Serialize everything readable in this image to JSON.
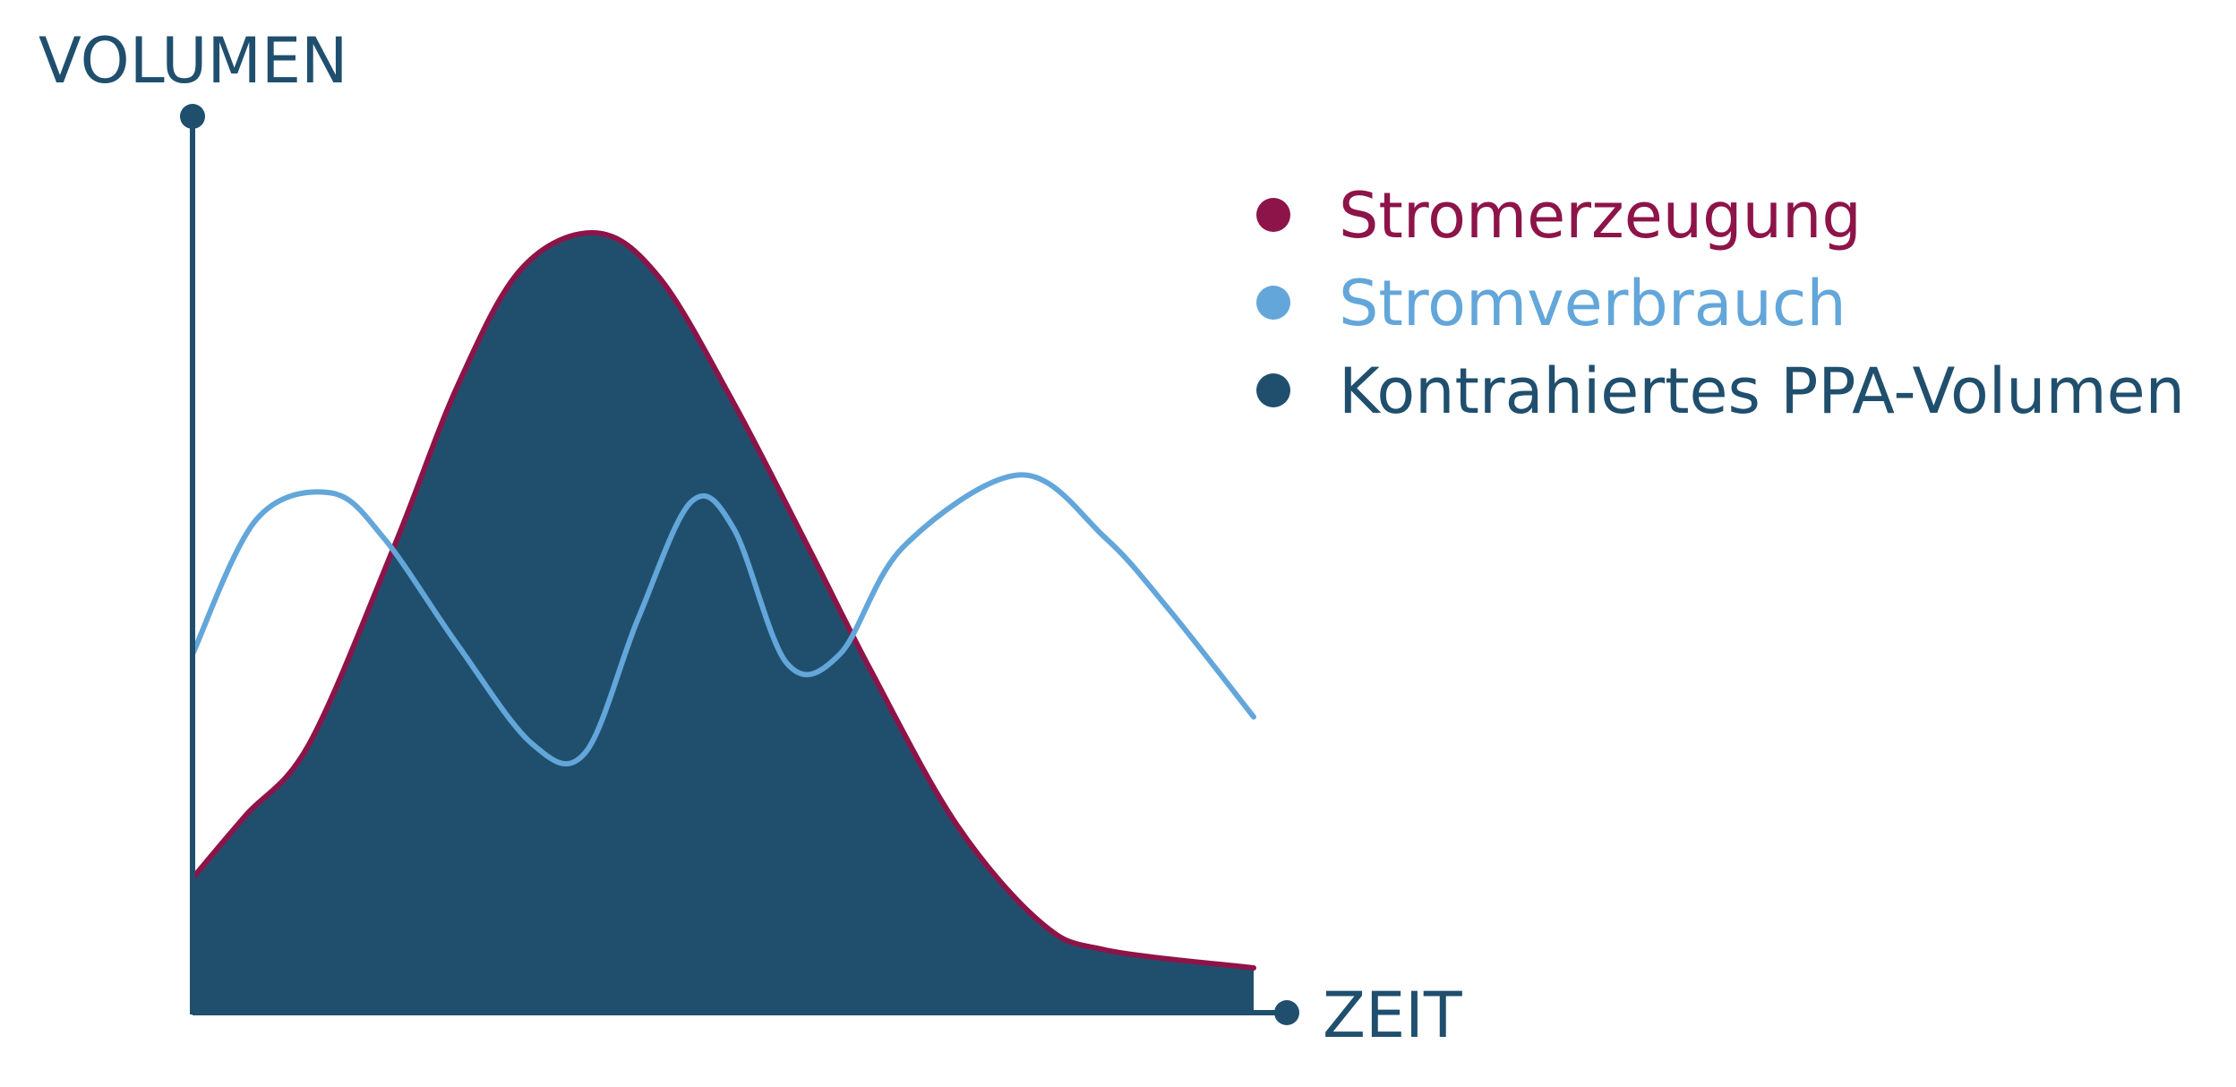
{
  "chart_data": {
    "type": "area",
    "title": "",
    "ylabel": "VOLUMEN",
    "xlabel": "ZEIT",
    "grid": false,
    "xlim": [
      0,
      100
    ],
    "ylim": [
      0,
      100
    ],
    "legend_position": "top-right",
    "legend": [
      {
        "name": "Stromerzeugung",
        "color": "#8d1448"
      },
      {
        "name": "Stromverbrauch",
        "color": "#63a6da"
      },
      {
        "name": "Kontrahiertes PPA-Volumen",
        "color": "#204f6e"
      }
    ],
    "series": [
      {
        "name": "Stromerzeugung",
        "kind": "line",
        "color": "#8d1448",
        "points": [
          [
            0,
            15
          ],
          [
            5,
            22
          ],
          [
            11,
            30
          ],
          [
            19,
            52
          ],
          [
            25,
            70
          ],
          [
            31,
            83
          ],
          [
            38,
            87
          ],
          [
            44,
            82
          ],
          [
            51,
            68
          ],
          [
            58,
            52
          ],
          [
            64,
            38
          ],
          [
            72,
            21
          ],
          [
            80,
            10
          ],
          [
            86,
            7
          ],
          [
            100,
            5
          ]
        ]
      },
      {
        "name": "Stromverbrauch",
        "kind": "line",
        "color": "#63a6da",
        "points": [
          [
            0,
            40
          ],
          [
            6,
            55
          ],
          [
            13,
            58
          ],
          [
            18,
            53
          ],
          [
            25,
            41
          ],
          [
            32,
            30
          ],
          [
            37,
            29
          ],
          [
            42,
            44
          ],
          [
            47,
            57
          ],
          [
            51,
            54
          ],
          [
            56,
            39
          ],
          [
            61,
            40
          ],
          [
            67,
            52
          ],
          [
            78,
            60
          ],
          [
            86,
            53
          ],
          [
            92,
            45
          ],
          [
            100,
            33
          ]
        ]
      },
      {
        "name": "Kontrahiertes PPA-Volumen",
        "kind": "area",
        "color": "#204f6e",
        "points": [
          [
            0,
            15
          ],
          [
            5,
            22
          ],
          [
            11,
            30
          ],
          [
            19,
            52
          ],
          [
            25,
            70
          ],
          [
            31,
            83
          ],
          [
            38,
            87
          ],
          [
            44,
            82
          ],
          [
            51,
            68
          ],
          [
            58,
            52
          ],
          [
            64,
            38
          ],
          [
            72,
            21
          ],
          [
            80,
            10
          ],
          [
            86,
            7
          ],
          [
            100,
            5
          ]
        ]
      }
    ]
  }
}
